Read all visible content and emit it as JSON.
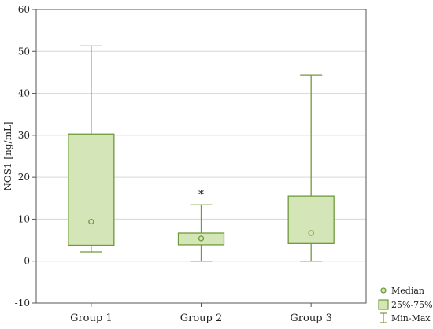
{
  "chart_data": {
    "type": "box",
    "categories": [
      "Group 1",
      "Group 2",
      "Group 3"
    ],
    "boxes": [
      {
        "category": "Group 1",
        "min": 2.2,
        "q1": 3.8,
        "median": 9.4,
        "q3": 30.3,
        "max": 51.3,
        "annotation": ""
      },
      {
        "category": "Group 2",
        "min": 0.0,
        "q1": 3.9,
        "median": 5.4,
        "q3": 6.7,
        "max": 13.4,
        "annotation": "*"
      },
      {
        "category": "Group 3",
        "min": 0.0,
        "q1": 4.2,
        "median": 6.7,
        "q3": 15.5,
        "max": 44.4,
        "annotation": ""
      }
    ],
    "ylabel": "NOS1 [ng/mL]",
    "ylim": [
      -10,
      60
    ],
    "yticks": [
      -10,
      0,
      10,
      20,
      30,
      40,
      50,
      60
    ],
    "grid": true,
    "legend": {
      "position": "bottom-right",
      "entries": [
        "Median",
        "25%-75%",
        "Min-Max"
      ]
    },
    "colors": {
      "box_fill": "#d4e6b8",
      "stroke": "#6f9a3a",
      "grid": "#d6d6d6"
    }
  }
}
